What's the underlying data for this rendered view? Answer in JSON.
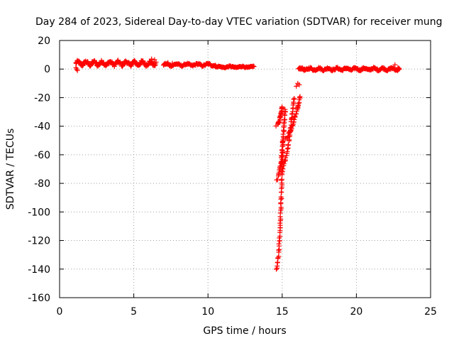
{
  "chart_data": {
    "type": "scatter",
    "title": "Day 284 of 2023, Sidereal Day-to-day VTEC variation (SDTVAR) for receiver mung",
    "xlabel": "GPS time / hours",
    "ylabel": "SDTVAR / TECUs",
    "xlim": [
      0,
      25
    ],
    "ylim": [
      -160,
      20
    ],
    "xticks": [
      0,
      5,
      10,
      15,
      20,
      25
    ],
    "yticks": [
      20,
      0,
      -20,
      -40,
      -60,
      -80,
      -100,
      -120,
      -140,
      -160
    ],
    "grid": true,
    "marker": "+",
    "series": [
      {
        "name": "SDTVAR",
        "color": "#ff0000",
        "segments": [
          {
            "x0": 1.1,
            "x1": 6.5,
            "y": 4,
            "amp": 2.2,
            "n": 180
          },
          {
            "x0": 7.0,
            "x1": 10.5,
            "y": 3,
            "amp": 1.2,
            "n": 90
          },
          {
            "x0": 10.5,
            "x1": 13.1,
            "y": 1.5,
            "amp": 0.8,
            "n": 60
          },
          {
            "x0": 16.1,
            "x1": 22.9,
            "y": 0,
            "amp": 1.3,
            "n": 200
          }
        ],
        "dip_arcs": [
          {
            "x0": 14.6,
            "x1": 15.0,
            "y0": -40,
            "y1": -26,
            "n": 22
          },
          {
            "x0": 14.6,
            "x1": 15.2,
            "y0": -78,
            "y1": -28,
            "n": 40
          },
          {
            "x0": 14.8,
            "x1": 15.8,
            "y0": -72,
            "y1": -20,
            "n": 40
          },
          {
            "x0": 14.6,
            "x1": 15.05,
            "y0": -141,
            "y1": -50,
            "n": 60
          },
          {
            "x0": 15.0,
            "x1": 16.2,
            "y0": -50,
            "y1": -19,
            "n": 35
          }
        ],
        "points": [
          [
            1.1,
            1
          ],
          [
            1.2,
            -1
          ],
          [
            1.15,
            0
          ],
          [
            6.2,
            7
          ],
          [
            6.4,
            6.5
          ],
          [
            7.1,
            4
          ],
          [
            7.3,
            4.5
          ],
          [
            7.6,
            4
          ],
          [
            15.95,
            -12
          ],
          [
            16.05,
            -10
          ],
          [
            16.15,
            -11
          ],
          [
            16.2,
            0
          ],
          [
            16.3,
            0.5
          ],
          [
            16.45,
            0
          ],
          [
            22.6,
            3
          ],
          [
            22.8,
            1
          ]
        ]
      }
    ]
  }
}
